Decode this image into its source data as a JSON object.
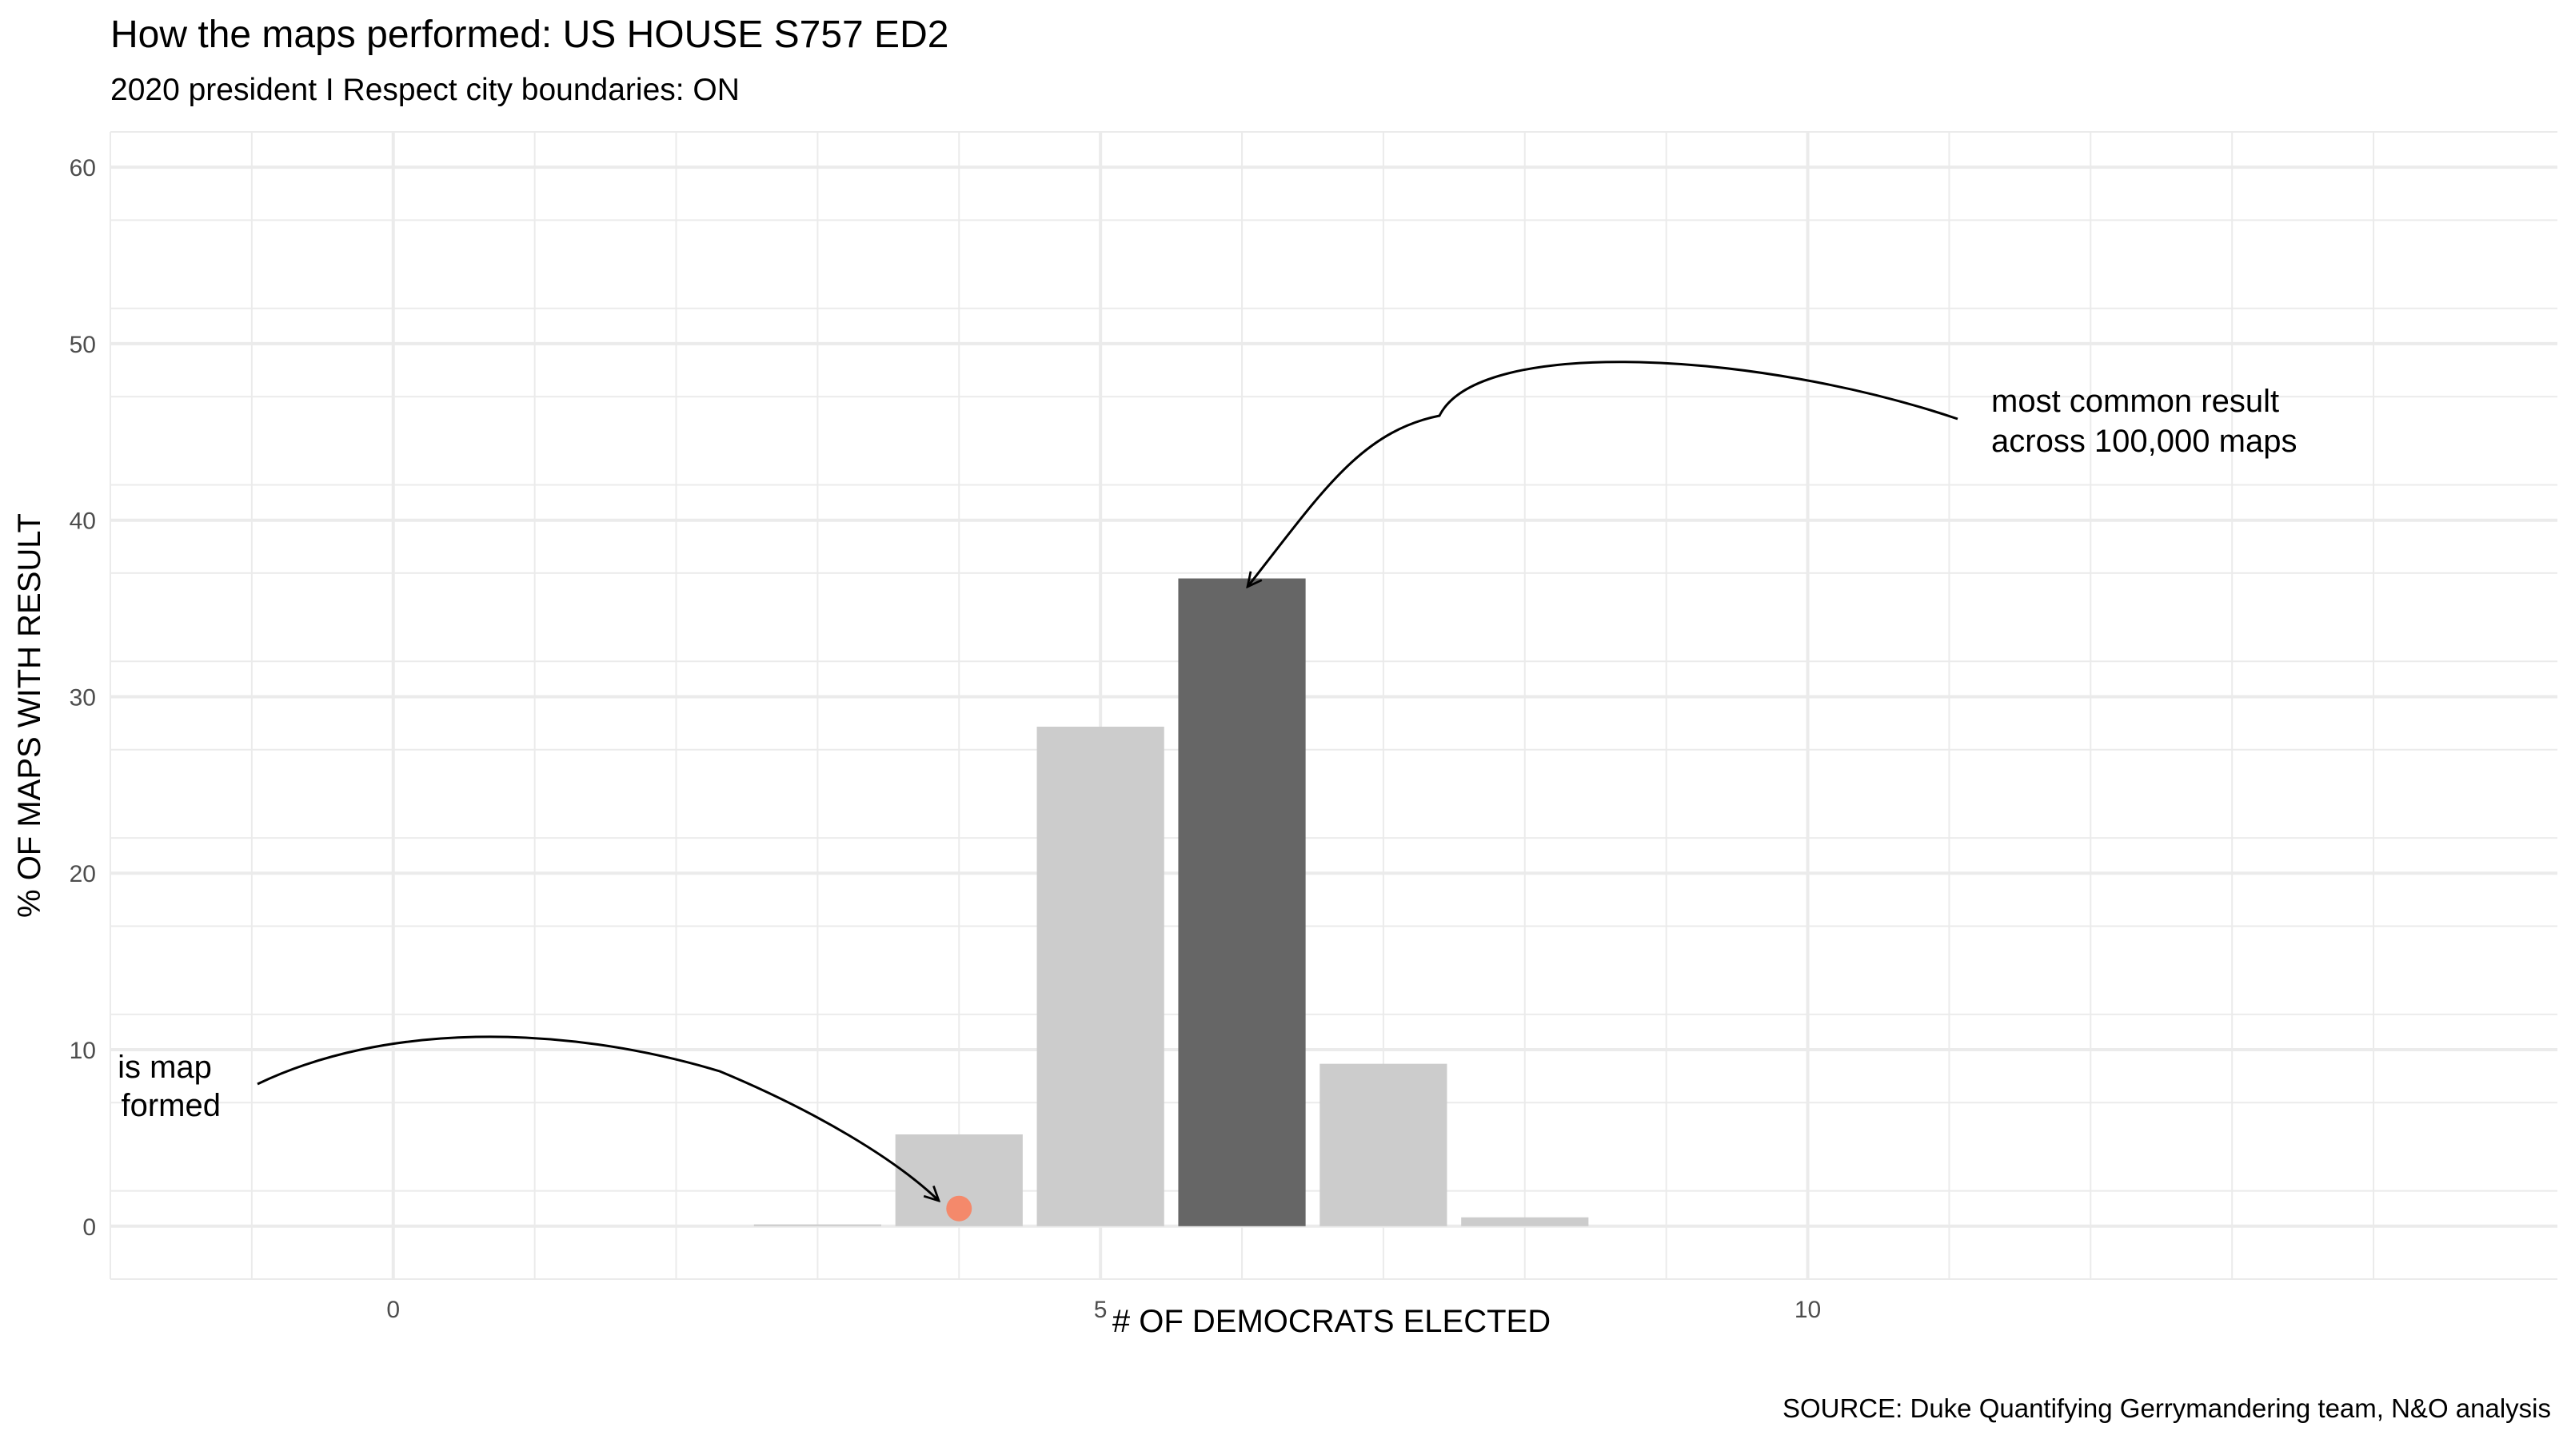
{
  "chart_data": {
    "type": "bar",
    "title": "How the maps performed: US HOUSE S757 ED2",
    "subtitle": "2020 president I Respect city boundaries: ON",
    "xlabel": "# OF DEMOCRATS ELECTED",
    "ylabel": "% OF MAPS WITH RESULT",
    "source": "SOURCE: Duke Quantifying Gerrymandering team, N&O analysis",
    "xlim": [
      -2,
      15.3
    ],
    "ylim": [
      -3,
      62
    ],
    "x_ticks": [
      0,
      5,
      10
    ],
    "y_ticks": [
      0,
      10,
      20,
      30,
      40,
      50,
      60
    ],
    "grid": true,
    "bars": [
      {
        "x": 3,
        "value": 0.1,
        "highlight": false
      },
      {
        "x": 4,
        "value": 5.2,
        "highlight": false
      },
      {
        "x": 5,
        "value": 28.3,
        "highlight": false
      },
      {
        "x": 6,
        "value": 36.7,
        "highlight": true
      },
      {
        "x": 7,
        "value": 9.2,
        "highlight": false
      },
      {
        "x": 8,
        "value": 0.5,
        "highlight": false
      }
    ],
    "enacted_map_point": {
      "x": 4,
      "y": 1
    },
    "annotations": [
      {
        "lines": [
          "most common result",
          "across 100,000 maps"
        ],
        "points_to_x": 6
      },
      {
        "lines": [
          "is map",
          "formed"
        ],
        "points_to_x": 4
      }
    ],
    "colors": {
      "bar": "#cccccc",
      "bar_highlight": "#666666",
      "point": "#f4896b",
      "grid": "#ebebeb",
      "tick_text": "#4d4d4d"
    }
  }
}
